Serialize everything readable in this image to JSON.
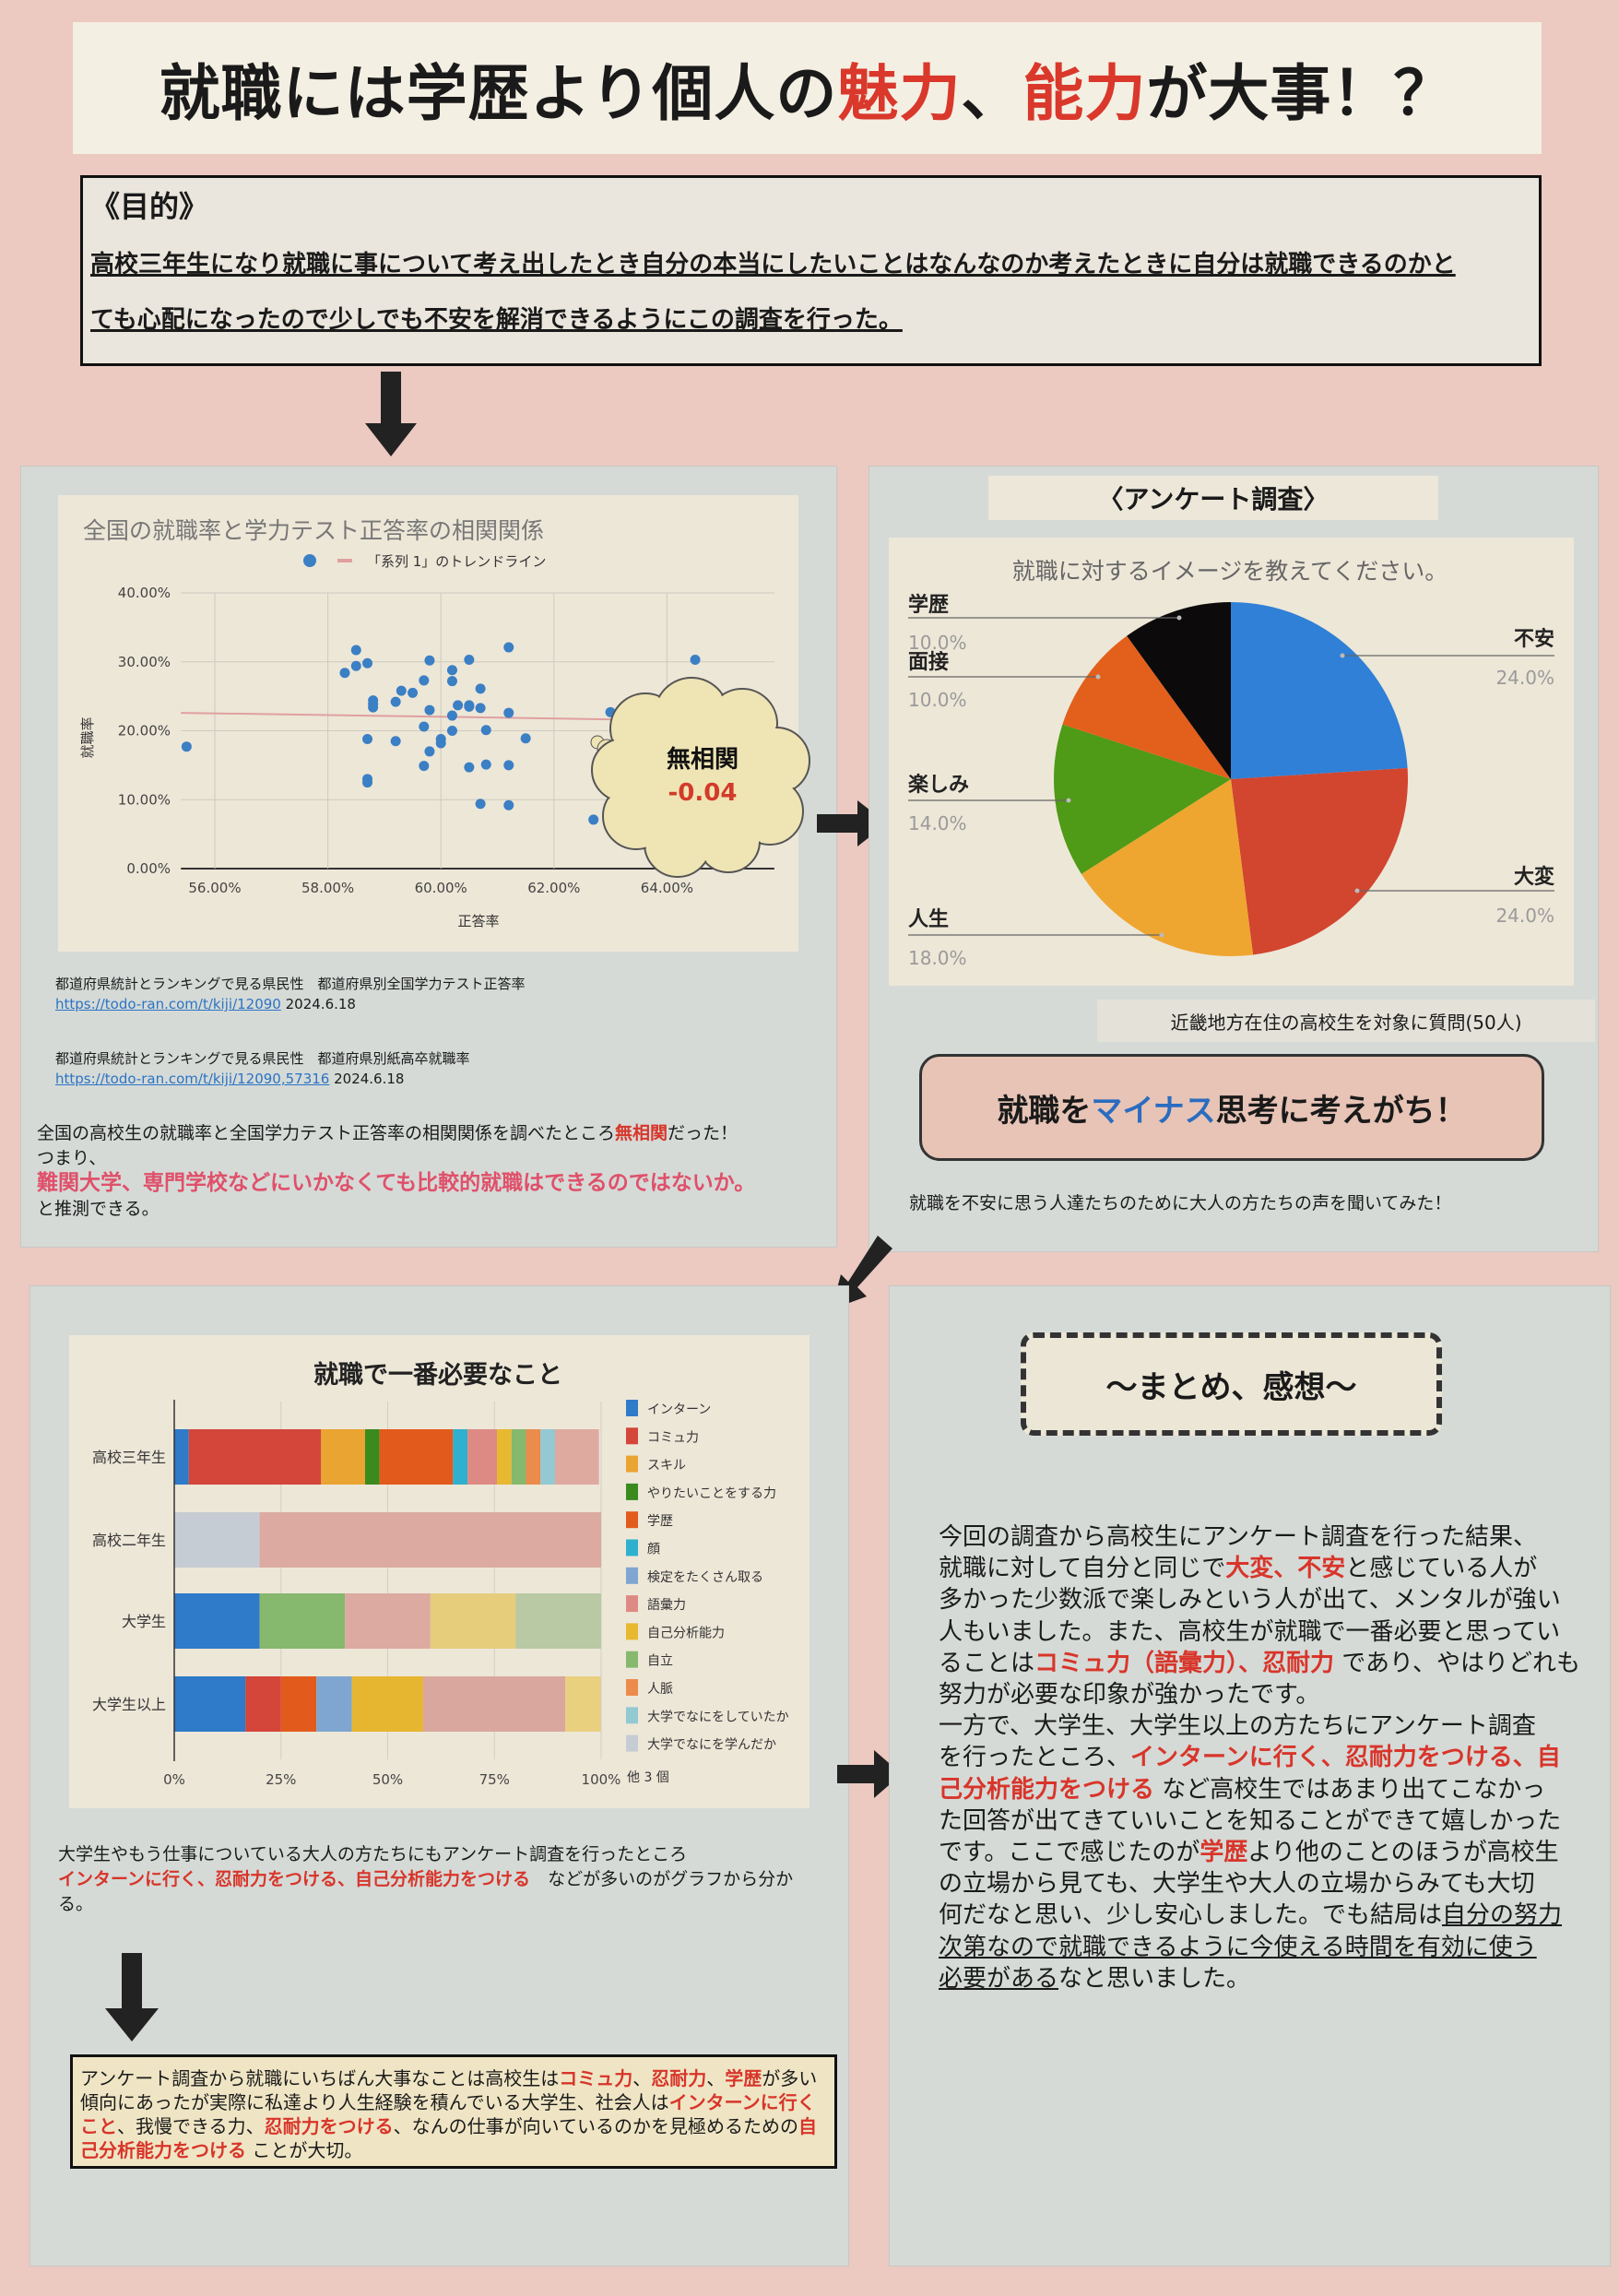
{
  "title": [
    {
      "t": "就職には学歴より個人の "
    },
    {
      "t": "魅力",
      "hl": 1
    },
    {
      "t": "、"
    },
    {
      "t": "能力",
      "hl": 1
    },
    {
      "t": "が大事！？"
    }
  ],
  "purpose": {
    "heading": "《目的》",
    "text": "高校三年生になり就職に事について考え出したとき自分の本当にしたいことはなんなのか考えたときに自分は就職できるのかと\nても心配になったので少しでも不安を解消できるようにこの調査を行った。"
  },
  "correlation_panel": {
    "callout_label": "無相関",
    "callout_value": "-0.04",
    "sources": [
      {
        "title": "都道府県統計とランキングで見る県民性　都道府県別全国学力テスト正答率",
        "url": "https://todo-ran.com/t/kiji/12090",
        "date": "2024.6.18"
      },
      {
        "title": "都道府県統計とランキングで見る県民性　都道府県別紙高卒就職率",
        "url": "https://todo-ran.com/t/kiji/12090,57316",
        "date": "2024.6.18"
      }
    ],
    "body": [
      {
        "t": "全国の高校生の就職率と全国学力テスト正答率の相関関係を調べたところ"
      },
      {
        "t": "無相関",
        "hl": 1
      },
      {
        "t": "だった！\nつまり、\n"
      },
      {
        "t": "難関大学、専門学校などにいかなくても比較的就職はできるのではないか。",
        "hl": 2
      },
      {
        "t": "\nと推測できる。"
      }
    ]
  },
  "survey_panel": {
    "heading": "〈アンケート調査〉",
    "caption": "近畿地方在住の高校生を対象に質問(50人)",
    "conclusion": [
      {
        "t": "就職を"
      },
      {
        "t": "マイナス",
        "blue": 1
      },
      {
        "t": "思考に考えがち！"
      }
    ],
    "voice_text": "就職を不安に思う人達たちのために大人の方たちの声を聞いてみた！"
  },
  "needs_panel": {
    "body": [
      {
        "t": "大学生やもう仕事についている大人の方たちにもアンケート調査を行ったところ\n"
      },
      {
        "t": "インターンに行く、忍耐力をつける、自己分析能力をつける",
        "hl": 1
      },
      {
        "t": "　などが多いのがグラフから分か\nる。"
      }
    ],
    "summary": [
      {
        "t": "アンケート調査から就職にいちばん大事なことは高校生は"
      },
      {
        "t": "コミュ力",
        "hl": 1
      },
      {
        "t": "、"
      },
      {
        "t": "忍耐力",
        "hl": 1
      },
      {
        "t": "、"
      },
      {
        "t": "学歴",
        "hl": 1
      },
      {
        "t": "が多い\n傾向にあったが実際に私達より人生経験を積んでいる大学生、社会人は"
      },
      {
        "t": "インターンに行く\nこと",
        "hl": 1
      },
      {
        "t": "、我慢できる力、"
      },
      {
        "t": "忍耐力をつける",
        "hl": 1
      },
      {
        "t": "、なんの仕事が向いているのかを見極めるための"
      },
      {
        "t": "自\n己分析能力をつける",
        "hl": 1
      },
      {
        "t": " ことが大切。"
      }
    ]
  },
  "summary_panel": {
    "heading": "～まとめ、感想～",
    "body": [
      {
        "t": "今回の調査から高校生にアンケート調査を行った結果、\n就職に対して自分と同じで"
      },
      {
        "t": "大変、不安",
        "hl": 1
      },
      {
        "t": "と感じている人が\n多かった少数派で楽しみという人が出て、メンタルが強い\n人もいました。また、高校生が就職で一番必要と思ってい\nることは"
      },
      {
        "t": "コミュ力（語彙力）、忍耐力",
        "hl": 1
      },
      {
        "t": " であり、やはりどれも\n努力が必要な印象が強かったです。\n一方で、大学生、大学生以上の方たちにアンケート調査\nを行ったところ、"
      },
      {
        "t": "インターンに行く、忍耐力をつける、自\n己分析能力をつける",
        "hl": 1
      },
      {
        "t": " など高校生ではあまり出てこなかっ\nた回答が出てきていいことを知ることができて嬉しかった\nです。ここで感じたのが"
      },
      {
        "t": "学歴",
        "hl": 1
      },
      {
        "t": "より他のことのほうが高校生\nの立場から見ても、大学生や大人の立場からみても大切\n何だなと思い、少し安心しました。でも結局は"
      },
      {
        "t": "自分の努力\n次第なので就職できるように今使える時間を有効に使う\n必要がある",
        "u": 1
      },
      {
        "t": "なと思いました。"
      }
    ]
  },
  "colors": {
    "accent_red": "#d8352a",
    "accent_blue": "#2a6cc0",
    "background": "#ecc9c1"
  },
  "icons": [
    "arrow-down-icon",
    "arrow-right-icon",
    "arrow-diagonal-icon",
    "thought-cloud-icon"
  ],
  "chart_data": [
    {
      "type": "scatter",
      "title": "全国の就職率と学力テスト正答率の相関関係",
      "legend": [
        "",
        "「系列 1」のトレンドライン"
      ],
      "legend_placement": "top",
      "xlabel": "正答率",
      "ylabel": "就職率",
      "xticks": [
        "56.00%",
        "58.00%",
        "60.00%",
        "62.00%",
        "64.00%"
      ],
      "yticks": [
        "0.00%",
        "10.00%",
        "20.00%",
        "30.00%",
        "40.00%"
      ],
      "xlim": [
        55.4,
        65.9
      ],
      "ylim": [
        0,
        40
      ],
      "grid": true,
      "points": [
        [
          55.5,
          17.7
        ],
        [
          58.3,
          28.4
        ],
        [
          58.5,
          31.7
        ],
        [
          58.5,
          29.4
        ],
        [
          58.7,
          29.8
        ],
        [
          58.7,
          18.8
        ],
        [
          58.7,
          13.0
        ],
        [
          58.7,
          12.5
        ],
        [
          58.8,
          24.4
        ],
        [
          58.8,
          23.9
        ],
        [
          58.8,
          23.4
        ],
        [
          59.2,
          24.2
        ],
        [
          59.2,
          18.5
        ],
        [
          59.3,
          25.8
        ],
        [
          59.5,
          25.5
        ],
        [
          59.7,
          27.3
        ],
        [
          59.7,
          20.6
        ],
        [
          59.7,
          14.9
        ],
        [
          59.8,
          30.2
        ],
        [
          59.8,
          23.0
        ],
        [
          59.8,
          17.0
        ],
        [
          60.0,
          18.8
        ],
        [
          60.0,
          18.2
        ],
        [
          60.2,
          28.8
        ],
        [
          60.2,
          27.2
        ],
        [
          60.2,
          22.2
        ],
        [
          60.2,
          20.0
        ],
        [
          60.3,
          23.7
        ],
        [
          60.5,
          30.3
        ],
        [
          60.5,
          23.7
        ],
        [
          60.5,
          23.5
        ],
        [
          60.5,
          14.7
        ],
        [
          60.7,
          26.1
        ],
        [
          60.7,
          23.3
        ],
        [
          60.7,
          9.4
        ],
        [
          60.8,
          20.1
        ],
        [
          60.8,
          15.1
        ],
        [
          61.2,
          32.1
        ],
        [
          61.2,
          22.6
        ],
        [
          61.2,
          15.0
        ],
        [
          61.2,
          9.2
        ],
        [
          61.5,
          18.9
        ],
        [
          62.7,
          7.1
        ],
        [
          63.0,
          22.7
        ],
        [
          64.5,
          30.3
        ],
        [
          65.8,
          22.6
        ]
      ],
      "trendline": [
        [
          55.4,
          22.6
        ],
        [
          65.9,
          21.3
        ]
      ],
      "point_color": "#3b7fc4",
      "trend_color": "#e0a0a0"
    },
    {
      "type": "pie",
      "title": "就職に対するイメージを教えてください。",
      "slices": [
        {
          "label": "不安",
          "pct": "24.0%",
          "value": 24,
          "color": "#2f80d6"
        },
        {
          "label": "大変",
          "pct": "24.0%",
          "value": 24,
          "color": "#d2452f"
        },
        {
          "label": "人生",
          "pct": "18.0%",
          "value": 18,
          "color": "#eea630"
        },
        {
          "label": "楽しみ",
          "pct": "14.0%",
          "value": 14,
          "color": "#4f9a16"
        },
        {
          "label": "面接",
          "pct": "10.0%",
          "value": 10,
          "color": "#e3601c"
        },
        {
          "label": "学歴",
          "pct": "10.0%",
          "value": 10,
          "color": "#0c0a0a"
        }
      ]
    },
    {
      "type": "bar",
      "stacked": "percent",
      "orientation": "horizontal",
      "title": "就職で一番必要なこと",
      "xticks": [
        "0%",
        "25%",
        "50%",
        "75%",
        "100%"
      ],
      "legend_placement": "right",
      "legend": [
        {
          "label": "インターン",
          "color": "#2f7ac9"
        },
        {
          "label": "コミュ力",
          "color": "#d4453a"
        },
        {
          "label": "スキル",
          "color": "#eaa431"
        },
        {
          "label": "やりたいことをする力",
          "color": "#3a8a1e"
        },
        {
          "label": "学歴",
          "color": "#e35b1c"
        },
        {
          "label": "顔",
          "color": "#2fb0cf"
        },
        {
          "label": "検定をたくさん取る",
          "color": "#7ea6d0"
        },
        {
          "label": "語彙力",
          "color": "#de8a84"
        },
        {
          "label": "自己分析能力",
          "color": "#e8b830"
        },
        {
          "label": "自立",
          "color": "#86b86e"
        },
        {
          "label": "人脈",
          "color": "#eb8b4c"
        },
        {
          "label": "大学でなにをしていたか",
          "color": "#93c9d2"
        },
        {
          "label": "大学でなにを学んだか",
          "color": "#c5ccd3"
        }
      ],
      "legend_more": "他 3 個",
      "categories": [
        "高校三年生",
        "高校二年生",
        "大学生",
        "大学生以上"
      ],
      "series": [
        [
          {
            "category": "インターン",
            "value": 3.4,
            "color": "#2f7ac9"
          },
          {
            "category": "コミュ力",
            "value": 31.0,
            "color": "#d4453a"
          },
          {
            "category": "スキル",
            "value": 10.3,
            "color": "#eaa431"
          },
          {
            "category": "やりたいことをする力",
            "value": 3.4,
            "color": "#3a8a1e"
          },
          {
            "category": "学歴",
            "value": 17.2,
            "color": "#e35b1c"
          },
          {
            "category": "顔",
            "value": 3.4,
            "color": "#2fb0cf"
          },
          {
            "category": "語彙力",
            "value": 6.9,
            "color": "#de8a84"
          },
          {
            "category": "自己分析能力",
            "value": 3.4,
            "color": "#e8b830"
          },
          {
            "category": "自立",
            "value": 3.4,
            "color": "#86b86e"
          },
          {
            "category": "人脈",
            "value": 3.4,
            "color": "#eb8b4c"
          },
          {
            "category": "大学でなにをしていたか",
            "value": 3.4,
            "color": "#93c9d2"
          },
          {
            "value": 10.3,
            "color": "#deaaa0"
          }
        ],
        [
          {
            "category": "大学でなにを学んだか",
            "value": 20,
            "color": "#c5ccd3"
          },
          {
            "value": 80,
            "color": "#dcaaa0"
          }
        ],
        [
          {
            "category": "インターン",
            "value": 20,
            "color": "#2f7ac9"
          },
          {
            "category": "自立",
            "value": 20,
            "color": "#86b86e"
          },
          {
            "value": 20,
            "color": "#dcaaa0"
          },
          {
            "value": 20,
            "color": "#e5cd7c"
          },
          {
            "value": 20,
            "color": "#b8c9a3"
          }
        ],
        [
          {
            "category": "インターン",
            "value": 16.7,
            "color": "#2f7ac9"
          },
          {
            "category": "コミュ力",
            "value": 8.3,
            "color": "#d4453a"
          },
          {
            "category": "学歴",
            "value": 8.3,
            "color": "#e35b1c"
          },
          {
            "category": "検定をたくさん取る",
            "value": 8.3,
            "color": "#7ea6d0"
          },
          {
            "category": "自己分析能力",
            "value": 16.7,
            "color": "#e6b631"
          },
          {
            "value": 33.3,
            "color": "#d9a79d"
          },
          {
            "value": 8.3,
            "color": "#e9d07e"
          }
        ]
      ]
    }
  ]
}
